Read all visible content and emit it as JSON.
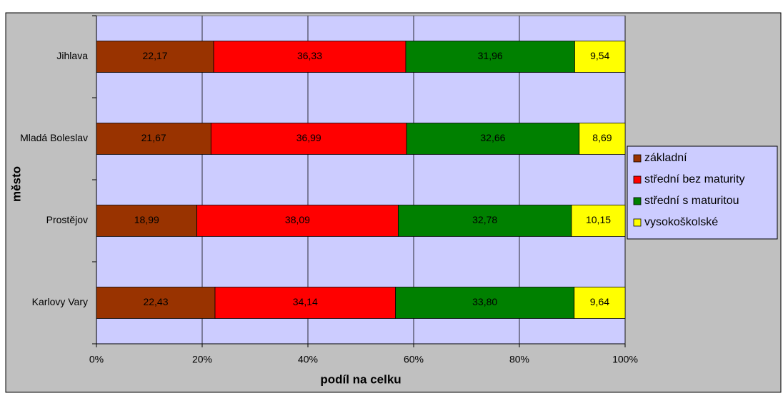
{
  "chart_data": {
    "type": "stacked_bar_horizontal",
    "x_label": "podíl na celku",
    "y_label": "město",
    "categories": [
      "Jihlava",
      "Mladá Boleslav",
      "Prostějov",
      "Karlovy Vary"
    ],
    "series": [
      {
        "name": "základní",
        "color": "#993300",
        "values": [
          22.17,
          21.67,
          18.99,
          22.43
        ],
        "value_labels": [
          "22,17",
          "21,67",
          "18,99",
          "22,43"
        ]
      },
      {
        "name": "střední bez maturity",
        "color": "#ff0000",
        "values": [
          36.33,
          36.99,
          38.09,
          34.14
        ],
        "value_labels": [
          "36,33",
          "36,99",
          "38,09",
          "34,14"
        ]
      },
      {
        "name": "střední s maturitou",
        "color": "#008000",
        "values": [
          31.96,
          32.66,
          32.78,
          33.8
        ],
        "value_labels": [
          "31,96",
          "32,66",
          "32,78",
          "33,80"
        ]
      },
      {
        "name": "vysokoškolské",
        "color": "#ffff00",
        "values": [
          9.54,
          8.69,
          10.15,
          9.64
        ],
        "value_labels": [
          "9,54",
          "8,69",
          "10,15",
          "9,64"
        ]
      }
    ],
    "xlim": [
      0,
      100
    ],
    "xticks": [
      {
        "value": 0,
        "label": "0%"
      },
      {
        "value": 20,
        "label": "20%"
      },
      {
        "value": 40,
        "label": "40%"
      },
      {
        "value": 60,
        "label": "60%"
      },
      {
        "value": 80,
        "label": "80%"
      },
      {
        "value": 100,
        "label": "100%"
      }
    ],
    "grid": true,
    "legend": "right",
    "plot_background": "#ccccff"
  }
}
